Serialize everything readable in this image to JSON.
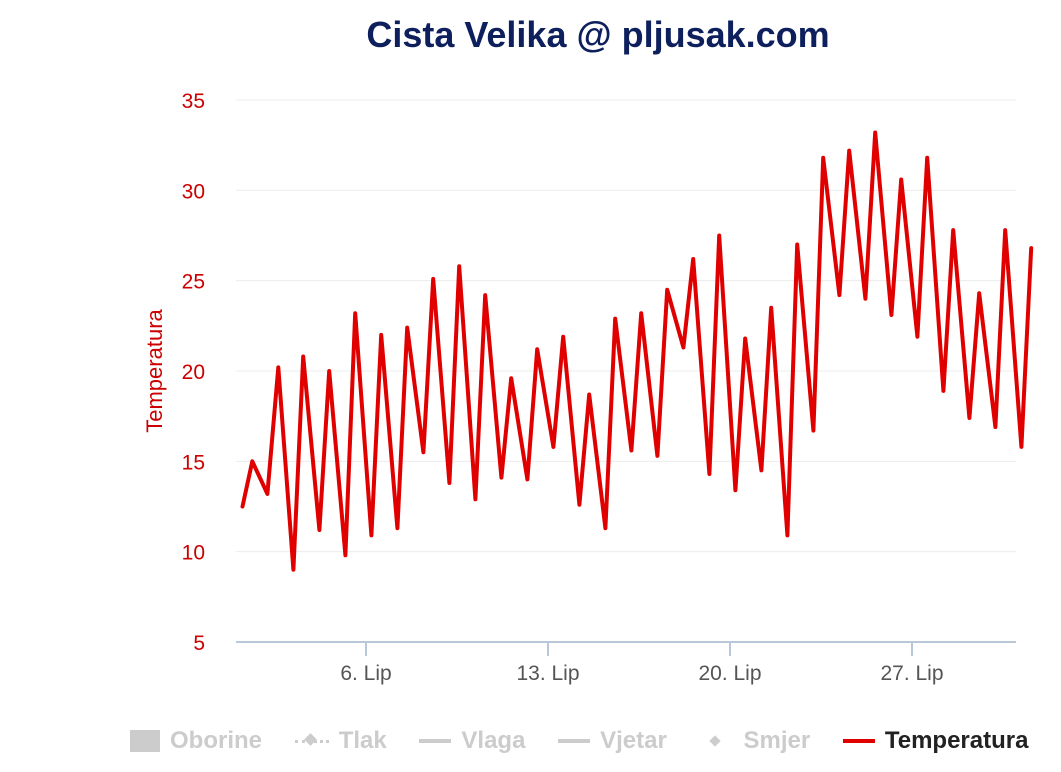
{
  "title": "Cista Velika @ pljusak.com",
  "colors": {
    "series": "#e00000",
    "axis_text": "#cc0000",
    "title": "#0d1f5c",
    "legend_inactive": "#cccccc",
    "legend_active": "#222222"
  },
  "chart_data": {
    "type": "line",
    "title": "Cista Velika @ pljusak.com",
    "ylabel": "Temperatura",
    "xlabel": "",
    "ylim": [
      5,
      35
    ],
    "yticks": [
      5,
      10,
      15,
      20,
      25,
      30,
      35
    ],
    "xlim": [
      "2017-06-01",
      "2017-07-01"
    ],
    "xticks": [
      {
        "date": "2017-06-06",
        "label": "6. Lip"
      },
      {
        "date": "2017-06-13",
        "label": "13. Lip"
      },
      {
        "date": "2017-06-20",
        "label": "20. Lip"
      },
      {
        "date": "2017-06-27",
        "label": "27. Lip"
      }
    ],
    "grid": true,
    "legend_position": "bottom",
    "series": [
      {
        "name": "Temperatura",
        "points": [
          [
            "2017-06-01 06:00",
            12.5
          ],
          [
            "2017-06-01 15:00",
            15.0
          ],
          [
            "2017-06-02 05:00",
            13.2
          ],
          [
            "2017-06-02 15:00",
            20.2
          ],
          [
            "2017-06-03 05:00",
            9.0
          ],
          [
            "2017-06-03 14:00",
            20.8
          ],
          [
            "2017-06-04 05:00",
            11.2
          ],
          [
            "2017-06-04 14:00",
            20.0
          ],
          [
            "2017-06-05 05:00",
            9.8
          ],
          [
            "2017-06-05 14:00",
            23.2
          ],
          [
            "2017-06-06 05:00",
            10.9
          ],
          [
            "2017-06-06 14:00",
            22.0
          ],
          [
            "2017-06-07 05:00",
            11.3
          ],
          [
            "2017-06-07 14:00",
            22.4
          ],
          [
            "2017-06-08 05:00",
            15.5
          ],
          [
            "2017-06-08 14:00",
            25.1
          ],
          [
            "2017-06-09 05:00",
            13.8
          ],
          [
            "2017-06-09 14:00",
            25.8
          ],
          [
            "2017-06-10 05:00",
            12.9
          ],
          [
            "2017-06-10 14:00",
            24.2
          ],
          [
            "2017-06-11 05:00",
            14.1
          ],
          [
            "2017-06-11 14:00",
            19.6
          ],
          [
            "2017-06-12 05:00",
            14.0
          ],
          [
            "2017-06-12 14:00",
            21.2
          ],
          [
            "2017-06-13 05:00",
            15.8
          ],
          [
            "2017-06-13 14:00",
            21.9
          ],
          [
            "2017-06-14 05:00",
            12.6
          ],
          [
            "2017-06-14 14:00",
            18.7
          ],
          [
            "2017-06-15 05:00",
            11.3
          ],
          [
            "2017-06-15 14:00",
            22.9
          ],
          [
            "2017-06-16 05:00",
            15.6
          ],
          [
            "2017-06-16 14:00",
            23.2
          ],
          [
            "2017-06-17 05:00",
            15.3
          ],
          [
            "2017-06-17 14:00",
            24.5
          ],
          [
            "2017-06-18 05:00",
            21.3
          ],
          [
            "2017-06-18 14:00",
            26.2
          ],
          [
            "2017-06-19 05:00",
            14.3
          ],
          [
            "2017-06-19 14:00",
            27.5
          ],
          [
            "2017-06-20 05:00",
            13.4
          ],
          [
            "2017-06-20 14:00",
            21.8
          ],
          [
            "2017-06-21 05:00",
            14.5
          ],
          [
            "2017-06-21 14:00",
            23.5
          ],
          [
            "2017-06-22 05:00",
            10.9
          ],
          [
            "2017-06-22 14:00",
            27.0
          ],
          [
            "2017-06-23 05:00",
            16.7
          ],
          [
            "2017-06-23 14:00",
            31.8
          ],
          [
            "2017-06-24 05:00",
            24.2
          ],
          [
            "2017-06-24 14:00",
            32.2
          ],
          [
            "2017-06-25 05:00",
            24.0
          ],
          [
            "2017-06-25 14:00",
            33.2
          ],
          [
            "2017-06-26 05:00",
            23.1
          ],
          [
            "2017-06-26 14:00",
            30.6
          ],
          [
            "2017-06-27 05:00",
            21.9
          ],
          [
            "2017-06-27 14:00",
            31.8
          ],
          [
            "2017-06-28 05:00",
            18.9
          ],
          [
            "2017-06-28 14:00",
            27.8
          ],
          [
            "2017-06-29 05:00",
            17.4
          ],
          [
            "2017-06-29 14:00",
            24.3
          ],
          [
            "2017-06-30 05:00",
            16.9
          ],
          [
            "2017-06-30 14:00",
            27.8
          ],
          [
            "2017-07-01 05:00",
            15.8
          ],
          [
            "2017-07-01 14:00",
            26.8
          ]
        ]
      }
    ]
  },
  "legend": [
    {
      "label": "Oborine",
      "symbol": "box",
      "active": false
    },
    {
      "label": "Tlak",
      "symbol": "dash",
      "active": false
    },
    {
      "label": "Vlaga",
      "symbol": "line",
      "active": false
    },
    {
      "label": "Vjetar",
      "symbol": "line",
      "active": false
    },
    {
      "label": "Smjer",
      "symbol": "diamond",
      "active": false
    },
    {
      "label": "Temperatura",
      "symbol": "red",
      "active": true
    }
  ]
}
